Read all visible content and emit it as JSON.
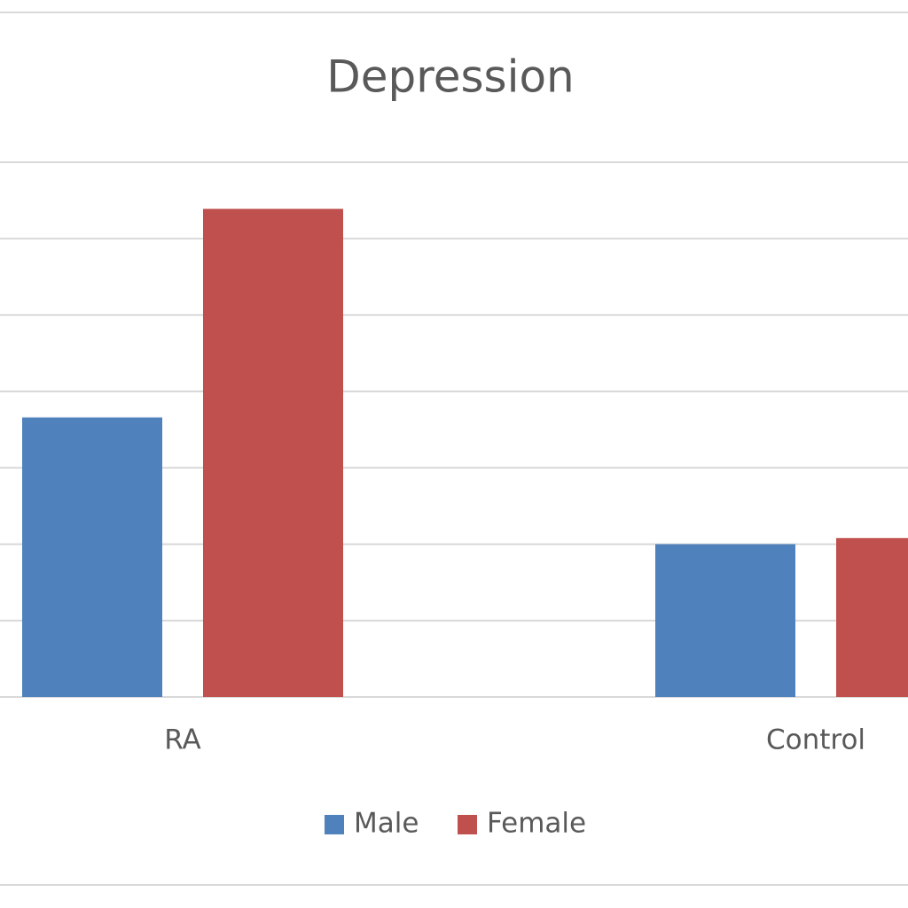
{
  "chart_data": {
    "type": "bar",
    "title": "Depression",
    "categories": [
      "RA",
      "Control"
    ],
    "series": [
      {
        "name": "Male",
        "color": "#4f81bd",
        "values": [
          3.66,
          2.0
        ]
      },
      {
        "name": "Female",
        "color": "#c0504d",
        "values": [
          6.39,
          2.08
        ]
      }
    ],
    "ylim": [
      0,
      7
    ],
    "yticks": [
      0,
      1,
      2,
      3,
      4,
      5,
      6,
      7
    ],
    "grid": true,
    "legend": "bottom"
  }
}
